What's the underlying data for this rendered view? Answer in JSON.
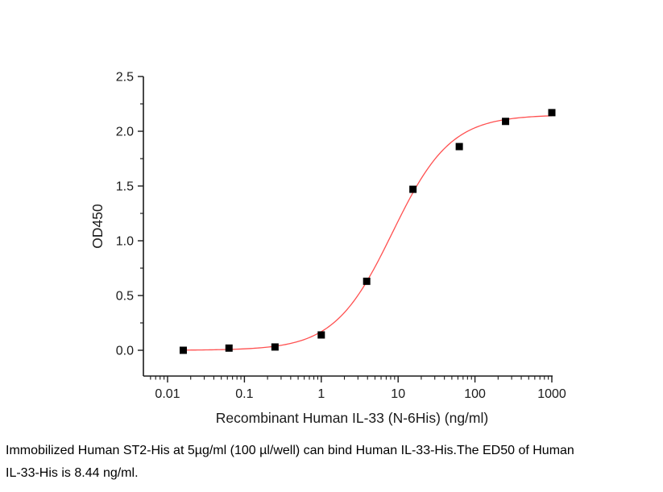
{
  "chart_data": {
    "type": "scatter",
    "title": "",
    "xlabel": "Recombinant Human IL-33 (N-6His) (ng/ml)",
    "ylabel": "OD450",
    "x_scale": "log",
    "xlim": [
      0.005,
      1000
    ],
    "ylim": [
      -0.25,
      2.5
    ],
    "grid": false,
    "legend": null,
    "x_ticks": [
      0.01,
      0.1,
      1,
      10,
      100,
      1000
    ],
    "x_tick_labels": [
      "0.01",
      "0.1",
      "1",
      "10",
      "100",
      "1000"
    ],
    "y_ticks": [
      0.0,
      0.5,
      1.0,
      1.5,
      2.0,
      2.5
    ],
    "y_tick_labels": [
      "0.0",
      "0.5",
      "1.0",
      "1.5",
      "2.0",
      "2.5"
    ],
    "y_minor_ticks": [
      0.25,
      0.75,
      1.25,
      1.75,
      2.25
    ],
    "x": [
      0.016,
      0.063,
      0.25,
      1,
      3.9,
      15.6,
      62.5,
      250,
      1000
    ],
    "y": [
      0.0,
      0.02,
      0.03,
      0.14,
      0.63,
      1.47,
      1.86,
      2.09,
      2.17
    ],
    "marker": {
      "shape": "square",
      "color": "#000000",
      "size": 9
    },
    "fit": {
      "model": "4PL",
      "bottom": 0.0,
      "top": 2.15,
      "ed50_ng_ml": 8.44,
      "hill": 1.15,
      "color": "#ff5050"
    }
  },
  "caption": {
    "lines": [
      "Immobilized Human ST2-His at 5µg/ml (100 µl/well) can bind Human IL-33-His.The ED50 of Human",
      "IL-33-His is 8.44 ng/ml."
    ]
  }
}
